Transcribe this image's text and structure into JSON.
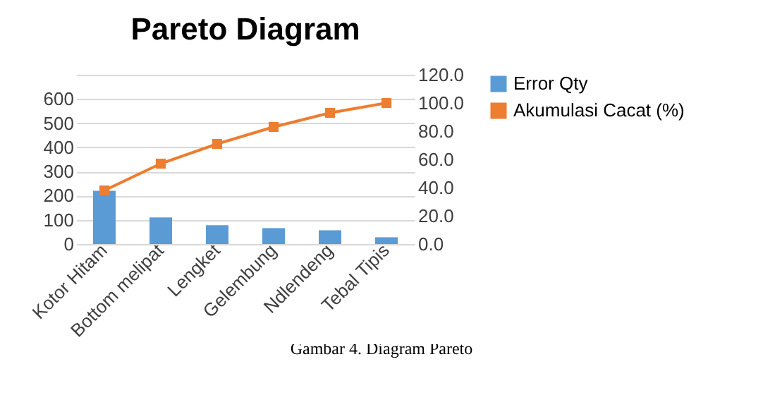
{
  "chart_data": {
    "type": "bar",
    "title": "Pareto Diagram",
    "categories": [
      "Kotor Hitam",
      "Bottom melipat",
      "Lengket",
      "Gelembung",
      "Ndlendeng",
      "Tebal Tipis"
    ],
    "series": [
      {
        "name": "Error Qty",
        "color": "#5b9bd5",
        "values": [
          220,
          110,
          78,
          66,
          57,
          28
        ]
      },
      {
        "name": "Akumulasi Cacat (%)",
        "type": "line",
        "axis": "y2",
        "color": "#ed7d31",
        "values": [
          38,
          57,
          71,
          83,
          93,
          100
        ]
      }
    ],
    "ylim": [
      0,
      700
    ],
    "yticks": [
      0,
      100,
      200,
      300,
      400,
      500,
      600,
      {
        "value": 700,
        "label": null
      }
    ],
    "y2lim": [
      0,
      120
    ],
    "y2ticks": [
      {
        "value": 0,
        "label": "0.0"
      },
      {
        "value": 20,
        "label": "20.0"
      },
      {
        "value": 40,
        "label": "40.0"
      },
      {
        "value": 60,
        "label": "60.0"
      },
      {
        "value": 80,
        "label": "80.0"
      },
      {
        "value": 100,
        "label": "100.0"
      },
      {
        "value": 120,
        "label": "120.0"
      }
    ],
    "grid": "y",
    "legend": "right",
    "marker": "square",
    "annotations": [
      "Gambar 4. Diagram Pareto"
    ]
  }
}
